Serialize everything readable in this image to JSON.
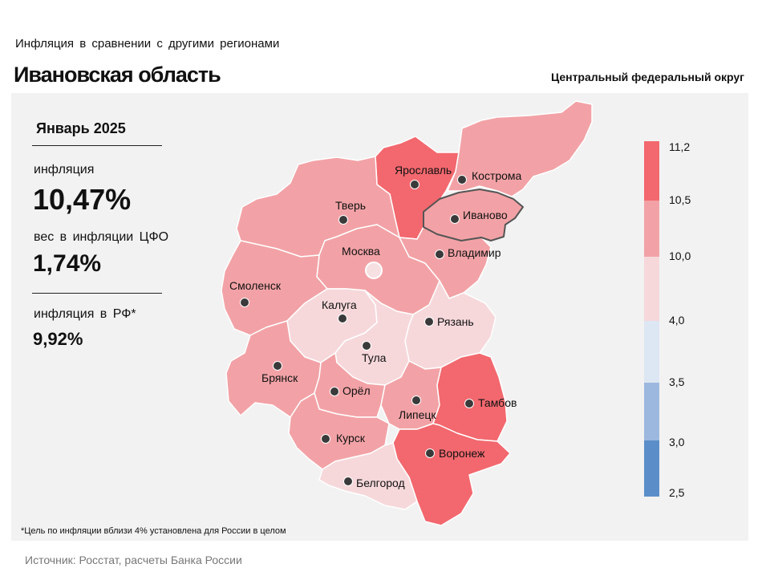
{
  "header": {
    "subtitle": "Инфляция в сравнении с другими регионами",
    "title": "Ивановская область",
    "district": "Центральный федеральный округ"
  },
  "stats": {
    "period": "Январь 2025",
    "inflation_label": "инфляция",
    "inflation_value": "10,47%",
    "weight_label": "вес в инфляции ЦФО",
    "weight_value": "1,74%",
    "rf_label": "инфляция в РФ*",
    "rf_value": "9,92%"
  },
  "footnote": "*Цель по инфляции вблизи 4% установлена для России в целом",
  "source": "Источник: Росстат, расчеты Банка России",
  "colors": {
    "above_10_5": "#f2686e",
    "r10_0_10_5": "#f2a2a6",
    "r4_0_10_0": "#f6d8db",
    "r3_5_4_0": "#dde6f3",
    "r3_0_3_5": "#9db8de",
    "r2_5_3_0": "#5b8ec9",
    "highlight_region": "Иваново"
  },
  "legend": {
    "ticks": [
      "11,2",
      "10,5",
      "10,0",
      "4,0",
      "3,5",
      "3,0",
      "2,5"
    ]
  },
  "map": {
    "regions": [
      {
        "name": "Ярославль",
        "bin": "above_10_5"
      },
      {
        "name": "Кострома",
        "bin": "r10_0_10_5"
      },
      {
        "name": "Иваново",
        "bin": "r10_0_10_5"
      },
      {
        "name": "Тверь",
        "bin": "r10_0_10_5"
      },
      {
        "name": "Москва",
        "bin": "r10_0_10_5"
      },
      {
        "name": "Владимир",
        "bin": "r10_0_10_5"
      },
      {
        "name": "Смоленск",
        "bin": "r10_0_10_5"
      },
      {
        "name": "Калуга",
        "bin": "r4_0_10_0"
      },
      {
        "name": "Рязань",
        "bin": "r4_0_10_0"
      },
      {
        "name": "Тула",
        "bin": "r4_0_10_0"
      },
      {
        "name": "Брянск",
        "bin": "r10_0_10_5"
      },
      {
        "name": "Орёл",
        "bin": "r10_0_10_5"
      },
      {
        "name": "Липецк",
        "bin": "r10_0_10_5"
      },
      {
        "name": "Тамбов",
        "bin": "above_10_5"
      },
      {
        "name": "Курск",
        "bin": "r10_0_10_5"
      },
      {
        "name": "Воронеж",
        "bin": "above_10_5"
      },
      {
        "name": "Белгород",
        "bin": "r4_0_10_0"
      }
    ]
  }
}
